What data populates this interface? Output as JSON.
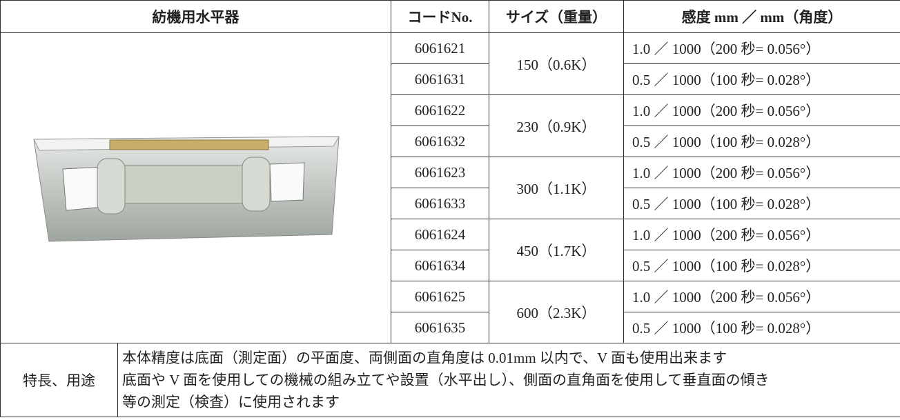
{
  "header": {
    "title": "紡機用水平器",
    "code": "コードNo.",
    "size": "サイズ（重量）",
    "sensitivity": "感度 mm ／ mm（角度）"
  },
  "rows": [
    {
      "code": "6061621",
      "sensitivity": "1.0 ／ 1000（200 秒= 0.056°）"
    },
    {
      "code": "6061631",
      "sensitivity": "0.5 ／ 1000（100 秒= 0.028°）"
    },
    {
      "code": "6061622",
      "sensitivity": "1.0 ／ 1000（200 秒= 0.056°）"
    },
    {
      "code": "6061632",
      "sensitivity": "0.5 ／ 1000（100 秒= 0.028°）"
    },
    {
      "code": "6061623",
      "sensitivity": "1.0 ／ 1000（200 秒= 0.056°）"
    },
    {
      "code": "6061633",
      "sensitivity": "0.5 ／ 1000（100 秒= 0.028°）"
    },
    {
      "code": "6061624",
      "sensitivity": "1.0 ／ 1000（200 秒= 0.056°）"
    },
    {
      "code": "6061634",
      "sensitivity": "0.5 ／ 1000（100 秒= 0.028°）"
    },
    {
      "code": "6061625",
      "sensitivity": "1.0 ／ 1000（200 秒= 0.056°）"
    },
    {
      "code": "6061635",
      "sensitivity": "0.5 ／ 1000（100 秒= 0.028°）"
    }
  ],
  "sizes": [
    "150（0.6K）",
    "230（0.9K）",
    "300（1.1K）",
    "450（1.7K）",
    "600（2.3K）"
  ],
  "features": {
    "label": "特長、用途",
    "lines": [
      "本体精度は底面（測定面）の平面度、両側面の直角度は 0.01mm 以内で、V 面も使用出来ます",
      "底面や V 面を使用しての機械の組み立てや設置（水平出し）、側面の直角面を使用して垂直面の傾き",
      "等の測定（検査）に使用されます"
    ]
  }
}
